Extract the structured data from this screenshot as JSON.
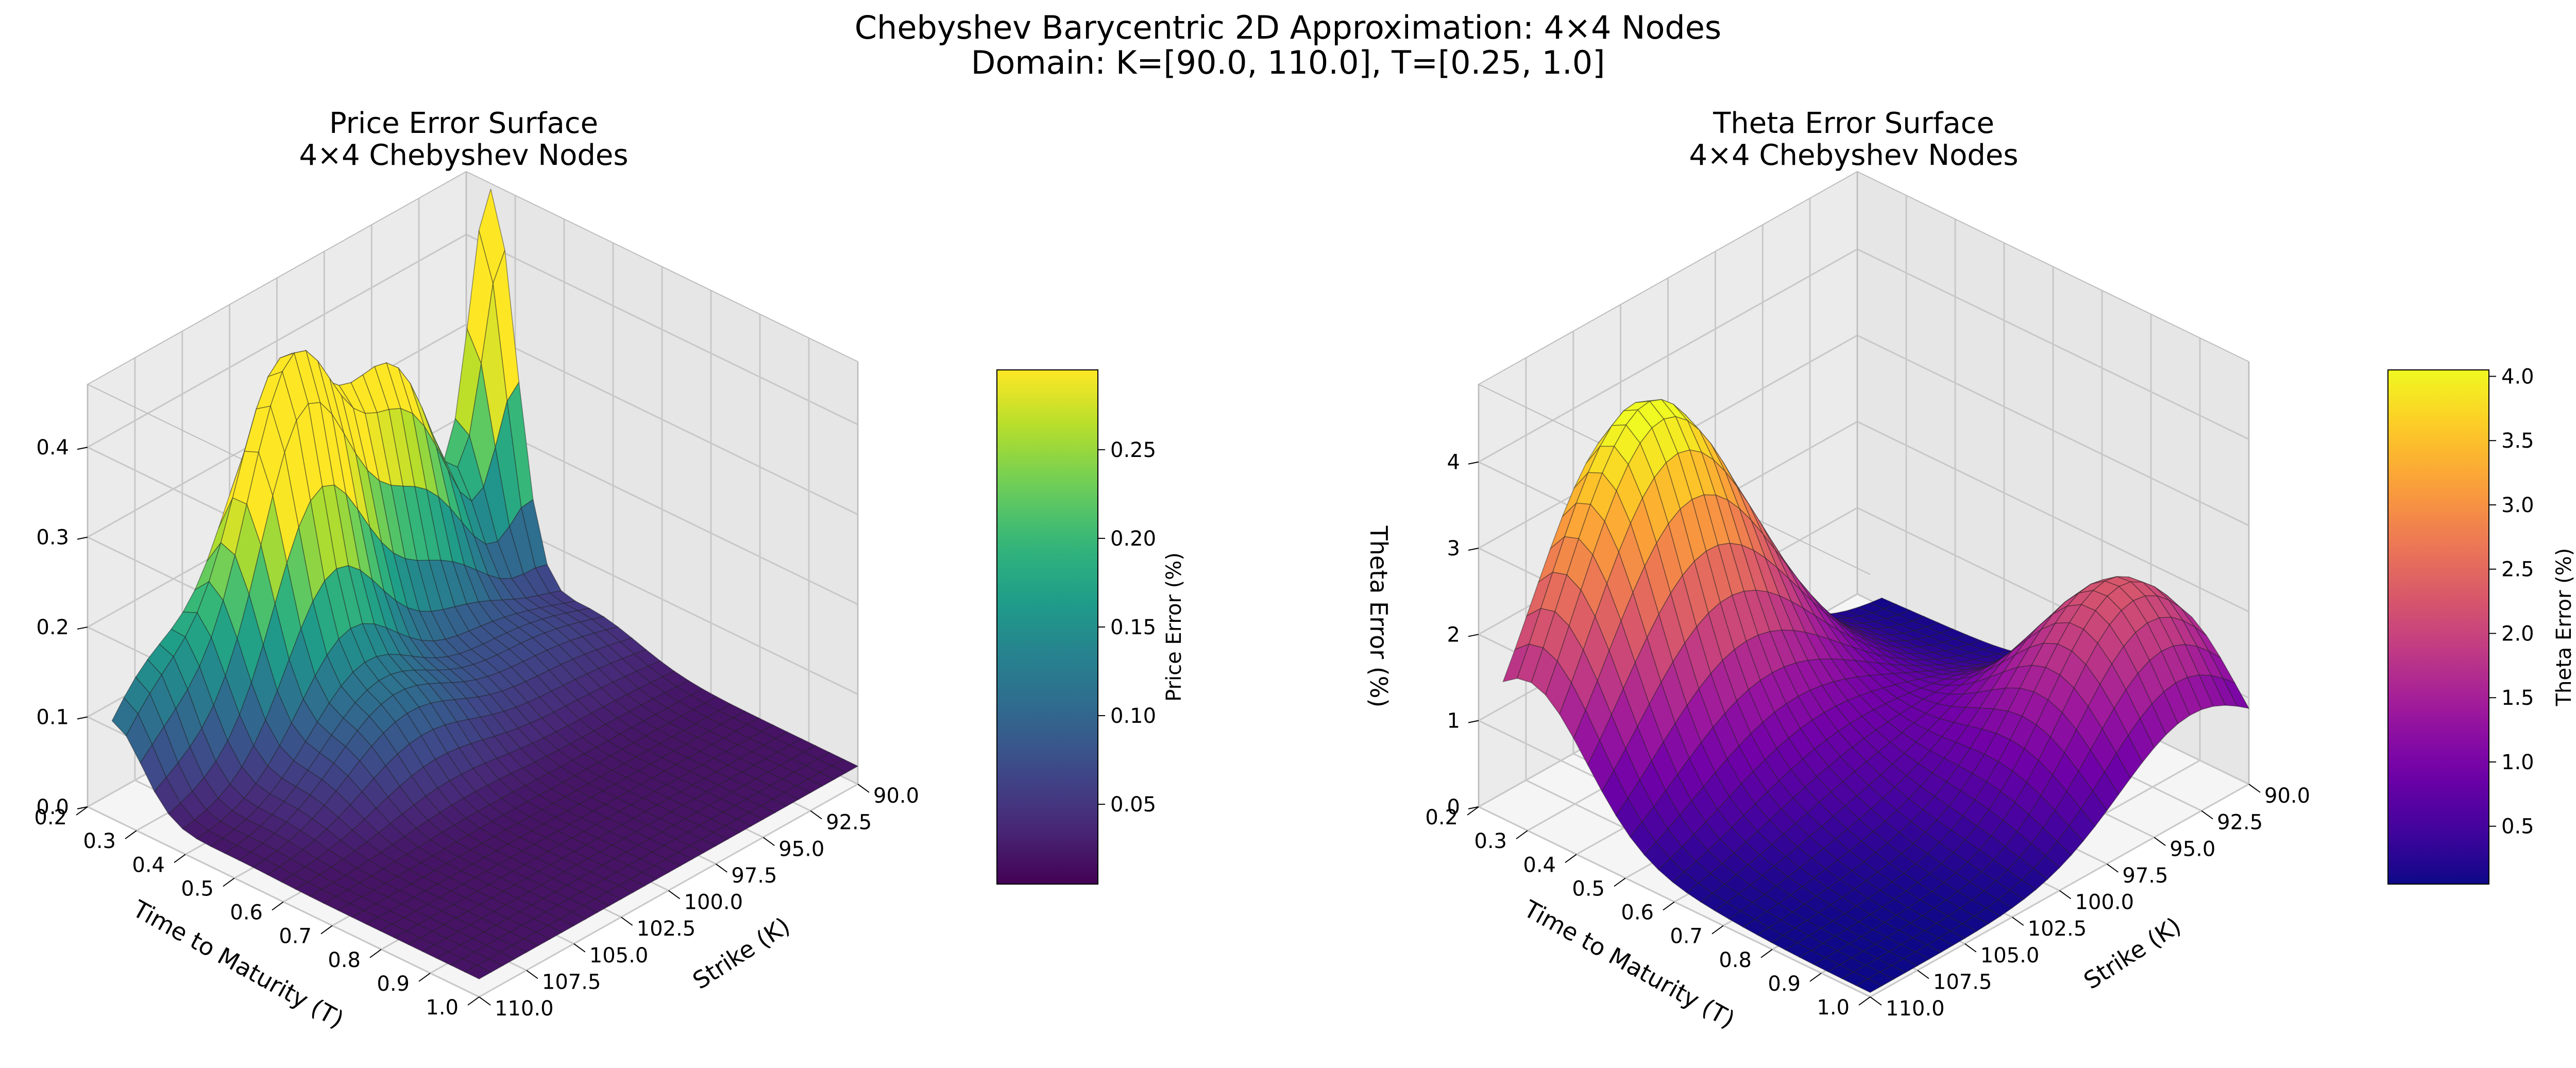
{
  "figure": {
    "title_line1": "Chebyshev Barycentric 2D Approximation: 4×4 Nodes",
    "title_line2": "Domain: K=[90.0, 110.0], T=[0.25, 1.0]"
  },
  "chart_data": [
    {
      "type": "surface",
      "title": [
        "Price Error Surface",
        "4×4 Chebyshev Nodes"
      ],
      "xlabel": "Time to Maturity (T)",
      "ylabel": "Strike (K)",
      "zlabel": "",
      "x_ticks": [
        "0.2",
        "0.3",
        "0.4",
        "0.5",
        "0.6",
        "0.7",
        "0.8",
        "0.9",
        "1.0"
      ],
      "y_ticks": [
        "90.0",
        "92.5",
        "95.0",
        "97.5",
        "100.0",
        "102.5",
        "105.0",
        "107.5",
        "110.0"
      ],
      "z_ticks": [
        "0.0",
        "0.1",
        "0.2",
        "0.3",
        "0.4"
      ],
      "xlim": [
        0.2,
        1.0
      ],
      "ylim": [
        90.0,
        110.0
      ],
      "zlim": [
        0.0,
        0.47
      ],
      "colormap": "viridis",
      "colorbar": {
        "label": "Price Error (%)",
        "ticks": [
          "0.05",
          "0.10",
          "0.15",
          "0.20",
          "0.25"
        ],
        "range": [
          0.005,
          0.295
        ]
      },
      "grid": true,
      "surface": {
        "base": 0.02,
        "bumps": [
          {
            "T": 0.25,
            "K": 90.0,
            "height": 0.42,
            "width_T": 0.05,
            "width_K": 1.2
          },
          {
            "T": 0.27,
            "K": 96.0,
            "height": 0.3,
            "width_T": 0.06,
            "width_K": 2.6
          },
          {
            "T": 0.3,
            "K": 102.0,
            "height": 0.39,
            "width_T": 0.07,
            "width_K": 2.5
          },
          {
            "T": 0.5,
            "K": 102.0,
            "height": 0.08,
            "width_T": 0.08,
            "width_K": 3.0
          },
          {
            "T": 0.45,
            "K": 94.0,
            "height": 0.05,
            "width_T": 0.1,
            "width_K": 4.0
          },
          {
            "T": 0.25,
            "K": 108.0,
            "height": 0.12,
            "width_T": 0.06,
            "width_K": 2.5
          }
        ]
      }
    },
    {
      "type": "surface",
      "title": [
        "Theta Error Surface",
        "4×4 Chebyshev Nodes"
      ],
      "xlabel": "Time to Maturity (T)",
      "ylabel": "Strike (K)",
      "zlabel": "Theta Error (%)",
      "x_ticks": [
        "0.2",
        "0.3",
        "0.4",
        "0.5",
        "0.6",
        "0.7",
        "0.8",
        "0.9",
        "1.0"
      ],
      "y_ticks": [
        "90.0",
        "92.5",
        "95.0",
        "97.5",
        "100.0",
        "102.5",
        "105.0",
        "107.5",
        "110.0"
      ],
      "z_ticks": [
        "0",
        "1",
        "2",
        "3",
        "4"
      ],
      "xlim": [
        0.2,
        1.0
      ],
      "ylim": [
        90.0,
        110.0
      ],
      "zlim": [
        0.0,
        4.9
      ],
      "colormap": "plasma",
      "colorbar": {
        "label": "Theta Error (%)",
        "ticks": [
          "0.5",
          "1.0",
          "1.5",
          "2.0",
          "2.5",
          "3.0",
          "3.5",
          "4.0"
        ],
        "range": [
          0.05,
          4.05
        ]
      },
      "grid": true,
      "surface": {
        "base": 0.05,
        "bumps": [
          {
            "T": 0.3,
            "K": 104.0,
            "height": 4.05,
            "width_T": 0.12,
            "width_K": 4.5
          },
          {
            "T": 0.85,
            "K": 93.0,
            "height": 2.2,
            "width_T": 0.13,
            "width_K": 3.8
          },
          {
            "T": 0.55,
            "K": 100.0,
            "height": 0.7,
            "width_T": 0.15,
            "width_K": 5.0
          }
        ]
      }
    }
  ]
}
